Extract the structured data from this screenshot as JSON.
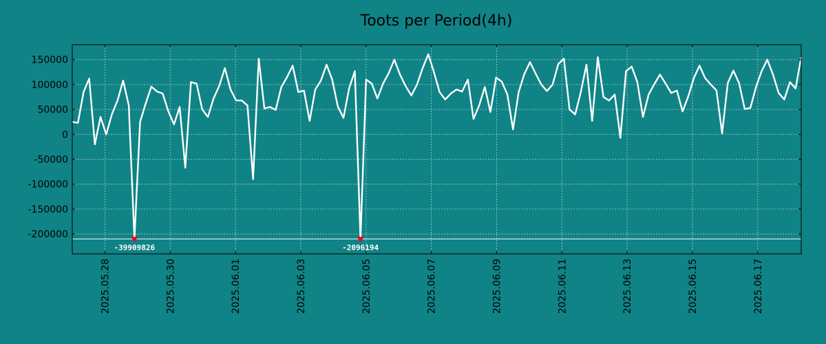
{
  "chart_data": {
    "type": "line",
    "title": "Toots per Period(4h)",
    "xlabel": "",
    "ylabel": "",
    "ylim": [
      -240000,
      180000
    ],
    "grid": true,
    "x_date_range": [
      "2025-05-27 00:00",
      "2025-06-18 08:00"
    ],
    "yticks": [
      150000,
      100000,
      50000,
      0,
      -50000,
      -100000,
      -150000,
      -200000
    ],
    "ytick_labels": [
      "150000",
      "100000",
      "50000",
      "0",
      "-50000",
      "-100000",
      "-150000",
      "-200000"
    ],
    "xtick_labels": [
      "2025.05.28",
      "2025.05.30",
      "2025.06.01",
      "2025.06.03",
      "2025.06.05",
      "2025.06.07",
      "2025.06.09",
      "2025.06.11",
      "2025.06.13",
      "2025.06.15",
      "2025.06.17"
    ],
    "xtick_dates": [
      "2025-05-28",
      "2025-05-30",
      "2025-06-01",
      "2025-06-03",
      "2025-06-05",
      "2025-06-07",
      "2025-06-09",
      "2025-06-11",
      "2025-06-13",
      "2025-06-15",
      "2025-06-17"
    ],
    "reference_line": -210000,
    "series": [
      {
        "values": [
          25000,
          23000,
          85000,
          112000,
          -20000,
          35000,
          0,
          40000,
          68000,
          108000,
          58000,
          -210000,
          25000,
          62000,
          96000,
          86000,
          82000,
          46000,
          20000,
          55000,
          -67000,
          105000,
          102000,
          50000,
          35000,
          72000,
          97000,
          133000,
          90000,
          68000,
          68000,
          58000,
          -90000,
          152000,
          52000,
          55000,
          49000,
          95000,
          115000,
          138000,
          85000,
          88000,
          27000,
          90000,
          108000,
          140000,
          110000,
          56000,
          33000,
          93000,
          127000,
          -210000,
          110000,
          102000,
          72000,
          102000,
          123000,
          150000,
          120000,
          97000,
          78000,
          100000,
          133000,
          161000,
          125000,
          85000,
          70000,
          82000,
          90000,
          86000,
          110000,
          31000,
          58000,
          95000,
          45000,
          114000,
          106000,
          80000,
          10000,
          85000,
          121000,
          145000,
          122000,
          100000,
          87000,
          100000,
          141000,
          152000,
          50000,
          40000,
          85000,
          140000,
          27000,
          155000,
          75000,
          68000,
          80000,
          -7000,
          127000,
          136000,
          105000,
          35000,
          80000,
          101000,
          120000,
          102000,
          83000,
          88000,
          46000,
          76000,
          113000,
          138000,
          113000,
          100000,
          88000,
          2000,
          103000,
          128000,
          103000,
          51000,
          53000,
          95000,
          127000,
          150000,
          120000,
          83000,
          70000,
          105000,
          92000,
          155000
        ]
      }
    ],
    "annotations": [
      {
        "index": 11,
        "text": "-39909826"
      },
      {
        "index": 51,
        "text": "-2096194"
      }
    ],
    "colors": {
      "background": "#108386",
      "line": "#ffffff",
      "marker": "#ff0000",
      "grid": "#a8d2d2",
      "axis": "#000000"
    }
  }
}
